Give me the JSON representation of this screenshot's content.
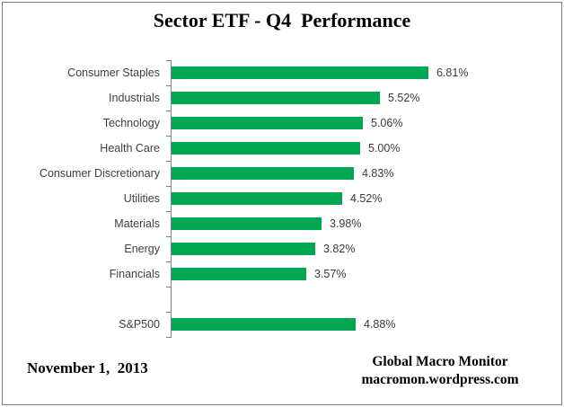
{
  "title": "Sector ETF - Q4  Performance",
  "chart_data": {
    "type": "bar",
    "orientation": "horizontal",
    "title": "Sector ETF - Q4  Performance",
    "categories": [
      "Consumer Staples",
      "Industrials",
      "Technology",
      "Health Care",
      "Consumer Discretionary",
      "Utilities",
      "Materials",
      "Energy",
      "Financials",
      "",
      "S&P500"
    ],
    "values": [
      6.81,
      5.52,
      5.06,
      5.0,
      4.83,
      4.52,
      3.98,
      3.82,
      3.57,
      null,
      4.88
    ],
    "value_labels": [
      "6.81%",
      "5.52%",
      "5.06%",
      "5.00%",
      "4.83%",
      "4.52%",
      "3.98%",
      "3.82%",
      "3.57%",
      "",
      "4.88%"
    ],
    "xlabel": "",
    "ylabel": "",
    "xlim": [
      0,
      7.5
    ],
    "grid": false,
    "legend": false,
    "data_labels": true,
    "bar_color": "#00A651",
    "axis_color": "#808080",
    "label_color": "#3f3f3f"
  },
  "footer": {
    "date": "November 1,  2013",
    "source_line1": "Global Macro Monitor",
    "source_line2": "macromon.wordpress.com"
  }
}
